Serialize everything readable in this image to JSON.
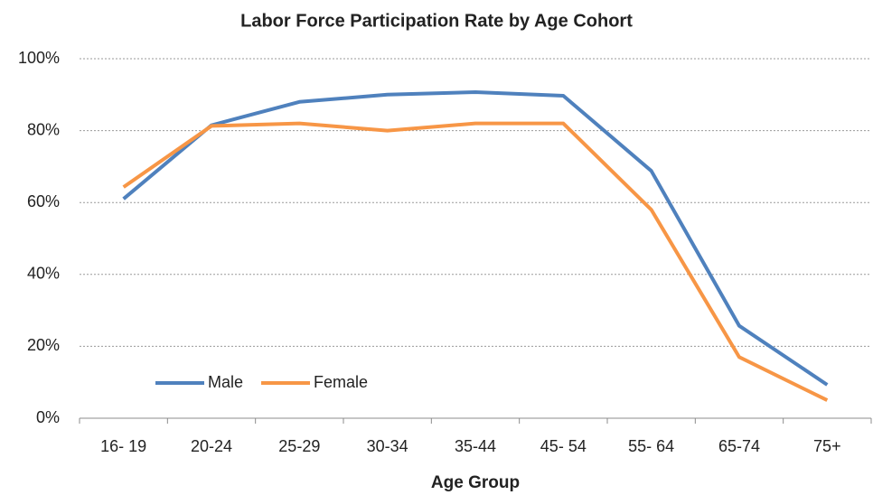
{
  "chart_data": {
    "type": "line",
    "title": "Labor Force Participation Rate by Age Cohort",
    "x_label": "Age Group",
    "categories": [
      "16- 19",
      "20-24",
      "25-29",
      "30-34",
      "35-44",
      "45- 54",
      "55- 64",
      "65-74",
      "75+"
    ],
    "series": [
      {
        "name": "Male",
        "color": "#4f81bd",
        "values": [
          61,
          81.5,
          88,
          90,
          90.7,
          89.7,
          68.8,
          25.7,
          9.3
        ]
      },
      {
        "name": "Female",
        "color": "#f79646",
        "values": [
          64.3,
          81.3,
          82,
          80,
          82,
          82,
          58,
          17,
          5
        ]
      }
    ],
    "ylim": [
      0,
      100
    ],
    "yticks": [
      {
        "value": 0,
        "label": "0%"
      },
      {
        "value": 20,
        "label": "20%"
      },
      {
        "value": 40,
        "label": "40%"
      },
      {
        "value": 60,
        "label": "60%"
      },
      {
        "value": 80,
        "label": "80%"
      },
      {
        "value": 100,
        "label": "100%"
      }
    ],
    "grid": true,
    "legend": "lower-left"
  }
}
